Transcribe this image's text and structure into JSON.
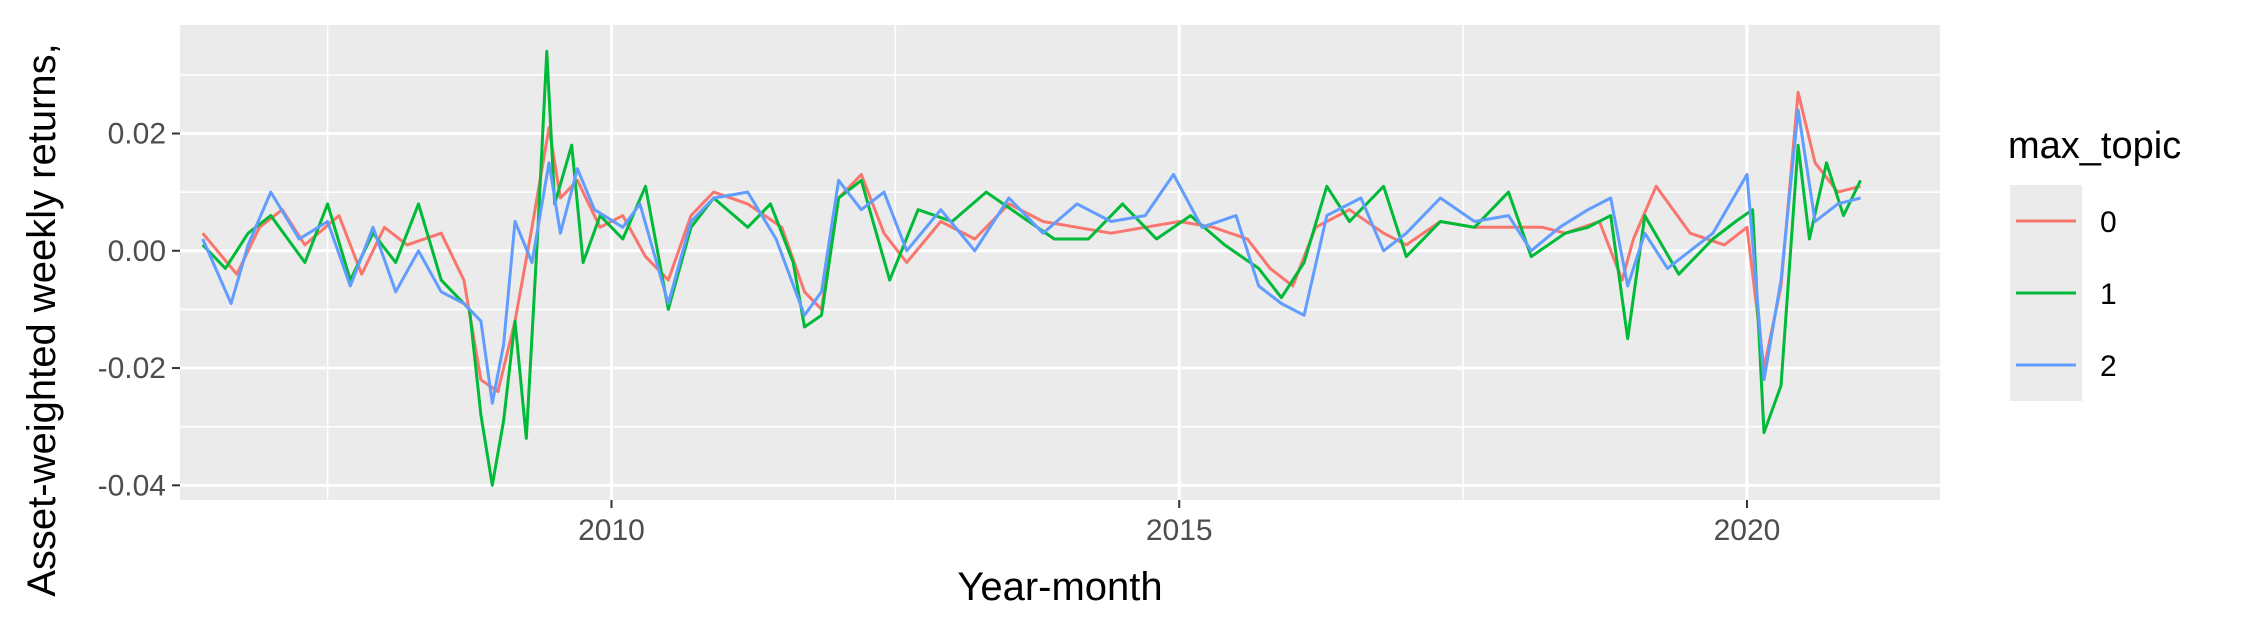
{
  "chart_data": {
    "type": "line",
    "xlabel": "Year-month",
    "ylabel": "Asset-weighted weekly returns,",
    "xlim": [
      2006.2,
      2021.7
    ],
    "ylim": [
      -0.0425,
      0.0385
    ],
    "x_ticks": [
      2010,
      2015,
      2020
    ],
    "x_tick_labels": [
      "2010",
      "2015",
      "2020"
    ],
    "y_ticks": [
      -0.04,
      -0.02,
      0.0,
      0.02
    ],
    "y_tick_labels": [
      "-0.04",
      "-0.02",
      "0.00",
      "0.02"
    ],
    "grid": true,
    "panel_background": "#ebebeb",
    "legend": {
      "title": "max_topic",
      "placement": "right"
    },
    "series": [
      {
        "name": "0",
        "color": "#F8766D",
        "points": [
          [
            2006.4,
            0.003
          ],
          [
            2006.7,
            -0.004
          ],
          [
            2006.9,
            0.004
          ],
          [
            2007.1,
            0.007
          ],
          [
            2007.3,
            0.001
          ],
          [
            2007.6,
            0.006
          ],
          [
            2007.8,
            -0.004
          ],
          [
            2008.0,
            0.004
          ],
          [
            2008.2,
            0.001
          ],
          [
            2008.5,
            0.003
          ],
          [
            2008.7,
            -0.005
          ],
          [
            2008.85,
            -0.022
          ],
          [
            2009.0,
            -0.024
          ],
          [
            2009.15,
            -0.012
          ],
          [
            2009.3,
            0.004
          ],
          [
            2009.45,
            0.021
          ],
          [
            2009.55,
            0.009
          ],
          [
            2009.7,
            0.012
          ],
          [
            2009.9,
            0.004
          ],
          [
            2010.1,
            0.006
          ],
          [
            2010.3,
            -0.001
          ],
          [
            2010.5,
            -0.005
          ],
          [
            2010.7,
            0.006
          ],
          [
            2010.9,
            0.01
          ],
          [
            2011.2,
            0.008
          ],
          [
            2011.5,
            0.004
          ],
          [
            2011.7,
            -0.007
          ],
          [
            2011.85,
            -0.01
          ],
          [
            2012.0,
            0.009
          ],
          [
            2012.2,
            0.013
          ],
          [
            2012.4,
            0.003
          ],
          [
            2012.6,
            -0.002
          ],
          [
            2012.9,
            0.005
          ],
          [
            2013.2,
            0.002
          ],
          [
            2013.5,
            0.008
          ],
          [
            2013.8,
            0.005
          ],
          [
            2014.1,
            0.004
          ],
          [
            2014.4,
            0.003
          ],
          [
            2014.7,
            0.004
          ],
          [
            2015.0,
            0.005
          ],
          [
            2015.3,
            0.004
          ],
          [
            2015.6,
            0.002
          ],
          [
            2015.8,
            -0.003
          ],
          [
            2016.0,
            -0.006
          ],
          [
            2016.2,
            0.004
          ],
          [
            2016.5,
            0.007
          ],
          [
            2016.8,
            0.003
          ],
          [
            2017.0,
            0.001
          ],
          [
            2017.3,
            0.005
          ],
          [
            2017.6,
            0.004
          ],
          [
            2017.9,
            0.004
          ],
          [
            2018.2,
            0.004
          ],
          [
            2018.4,
            0.003
          ],
          [
            2018.7,
            0.005
          ],
          [
            2018.9,
            -0.005
          ],
          [
            2019.0,
            0.002
          ],
          [
            2019.2,
            0.011
          ],
          [
            2019.5,
            0.003
          ],
          [
            2019.8,
            0.001
          ],
          [
            2020.0,
            0.004
          ],
          [
            2020.15,
            -0.02
          ],
          [
            2020.3,
            -0.006
          ],
          [
            2020.45,
            0.027
          ],
          [
            2020.6,
            0.015
          ],
          [
            2020.8,
            0.01
          ],
          [
            2021.0,
            0.011
          ]
        ]
      },
      {
        "name": "1",
        "color": "#00BA38",
        "points": [
          [
            2006.4,
            0.001
          ],
          [
            2006.6,
            -0.003
          ],
          [
            2006.8,
            0.003
          ],
          [
            2007.0,
            0.006
          ],
          [
            2007.3,
            -0.002
          ],
          [
            2007.5,
            0.008
          ],
          [
            2007.7,
            -0.005
          ],
          [
            2007.9,
            0.003
          ],
          [
            2008.1,
            -0.002
          ],
          [
            2008.3,
            0.008
          ],
          [
            2008.5,
            -0.005
          ],
          [
            2008.75,
            -0.01
          ],
          [
            2008.85,
            -0.028
          ],
          [
            2008.95,
            -0.04
          ],
          [
            2009.05,
            -0.029
          ],
          [
            2009.15,
            -0.012
          ],
          [
            2009.25,
            -0.032
          ],
          [
            2009.35,
            0.003
          ],
          [
            2009.43,
            0.034
          ],
          [
            2009.5,
            0.008
          ],
          [
            2009.65,
            0.018
          ],
          [
            2009.75,
            -0.002
          ],
          [
            2009.9,
            0.006
          ],
          [
            2010.1,
            0.002
          ],
          [
            2010.3,
            0.011
          ],
          [
            2010.5,
            -0.01
          ],
          [
            2010.7,
            0.004
          ],
          [
            2010.9,
            0.009
          ],
          [
            2011.2,
            0.004
          ],
          [
            2011.4,
            0.008
          ],
          [
            2011.6,
            -0.002
          ],
          [
            2011.7,
            -0.013
          ],
          [
            2011.85,
            -0.011
          ],
          [
            2012.0,
            0.009
          ],
          [
            2012.2,
            0.012
          ],
          [
            2012.45,
            -0.005
          ],
          [
            2012.7,
            0.007
          ],
          [
            2013.0,
            0.005
          ],
          [
            2013.3,
            0.01
          ],
          [
            2013.6,
            0.006
          ],
          [
            2013.9,
            0.002
          ],
          [
            2014.2,
            0.002
          ],
          [
            2014.5,
            0.008
          ],
          [
            2014.8,
            0.002
          ],
          [
            2015.1,
            0.006
          ],
          [
            2015.4,
            0.001
          ],
          [
            2015.7,
            -0.003
          ],
          [
            2015.9,
            -0.008
          ],
          [
            2016.1,
            -0.002
          ],
          [
            2016.3,
            0.011
          ],
          [
            2016.5,
            0.005
          ],
          [
            2016.8,
            0.011
          ],
          [
            2017.0,
            -0.001
          ],
          [
            2017.3,
            0.005
          ],
          [
            2017.6,
            0.004
          ],
          [
            2017.9,
            0.01
          ],
          [
            2018.1,
            -0.001
          ],
          [
            2018.4,
            0.003
          ],
          [
            2018.6,
            0.004
          ],
          [
            2018.8,
            0.006
          ],
          [
            2018.95,
            -0.015
          ],
          [
            2019.1,
            0.006
          ],
          [
            2019.4,
            -0.004
          ],
          [
            2019.7,
            0.002
          ],
          [
            2019.9,
            0.005
          ],
          [
            2020.05,
            0.007
          ],
          [
            2020.15,
            -0.031
          ],
          [
            2020.3,
            -0.023
          ],
          [
            2020.45,
            0.018
          ],
          [
            2020.55,
            0.002
          ],
          [
            2020.7,
            0.015
          ],
          [
            2020.85,
            0.006
          ],
          [
            2021.0,
            0.012
          ]
        ]
      },
      {
        "name": "2",
        "color": "#619CFF",
        "points": [
          [
            2006.4,
            0.002
          ],
          [
            2006.65,
            -0.009
          ],
          [
            2006.8,
            0.001
          ],
          [
            2007.0,
            0.01
          ],
          [
            2007.25,
            0.002
          ],
          [
            2007.5,
            0.005
          ],
          [
            2007.7,
            -0.006
          ],
          [
            2007.9,
            0.004
          ],
          [
            2008.1,
            -0.007
          ],
          [
            2008.3,
            0.0
          ],
          [
            2008.5,
            -0.007
          ],
          [
            2008.7,
            -0.009
          ],
          [
            2008.85,
            -0.012
          ],
          [
            2008.95,
            -0.026
          ],
          [
            2009.05,
            -0.016
          ],
          [
            2009.15,
            0.005
          ],
          [
            2009.3,
            -0.002
          ],
          [
            2009.45,
            0.015
          ],
          [
            2009.55,
            0.003
          ],
          [
            2009.7,
            0.014
          ],
          [
            2009.85,
            0.007
          ],
          [
            2010.1,
            0.004
          ],
          [
            2010.25,
            0.008
          ],
          [
            2010.5,
            -0.009
          ],
          [
            2010.7,
            0.005
          ],
          [
            2010.9,
            0.009
          ],
          [
            2011.2,
            0.01
          ],
          [
            2011.45,
            0.002
          ],
          [
            2011.7,
            -0.011
          ],
          [
            2011.85,
            -0.007
          ],
          [
            2012.0,
            0.012
          ],
          [
            2012.2,
            0.007
          ],
          [
            2012.4,
            0.01
          ],
          [
            2012.6,
            0.0
          ],
          [
            2012.9,
            0.007
          ],
          [
            2013.2,
            0.0
          ],
          [
            2013.5,
            0.009
          ],
          [
            2013.8,
            0.003
          ],
          [
            2014.1,
            0.008
          ],
          [
            2014.4,
            0.005
          ],
          [
            2014.7,
            0.006
          ],
          [
            2014.95,
            0.013
          ],
          [
            2015.2,
            0.004
          ],
          [
            2015.5,
            0.006
          ],
          [
            2015.7,
            -0.006
          ],
          [
            2015.9,
            -0.009
          ],
          [
            2016.1,
            -0.011
          ],
          [
            2016.3,
            0.006
          ],
          [
            2016.6,
            0.009
          ],
          [
            2016.8,
            0.0
          ],
          [
            2017.0,
            0.003
          ],
          [
            2017.3,
            0.009
          ],
          [
            2017.6,
            0.005
          ],
          [
            2017.9,
            0.006
          ],
          [
            2018.1,
            0.0
          ],
          [
            2018.35,
            0.004
          ],
          [
            2018.6,
            0.007
          ],
          [
            2018.8,
            0.009
          ],
          [
            2018.95,
            -0.006
          ],
          [
            2019.1,
            0.003
          ],
          [
            2019.3,
            -0.003
          ],
          [
            2019.5,
            0.0
          ],
          [
            2019.7,
            0.003
          ],
          [
            2020.0,
            0.013
          ],
          [
            2020.15,
            -0.022
          ],
          [
            2020.3,
            -0.005
          ],
          [
            2020.45,
            0.024
          ],
          [
            2020.6,
            0.005
          ],
          [
            2020.8,
            0.008
          ],
          [
            2021.0,
            0.009
          ]
        ]
      }
    ]
  }
}
